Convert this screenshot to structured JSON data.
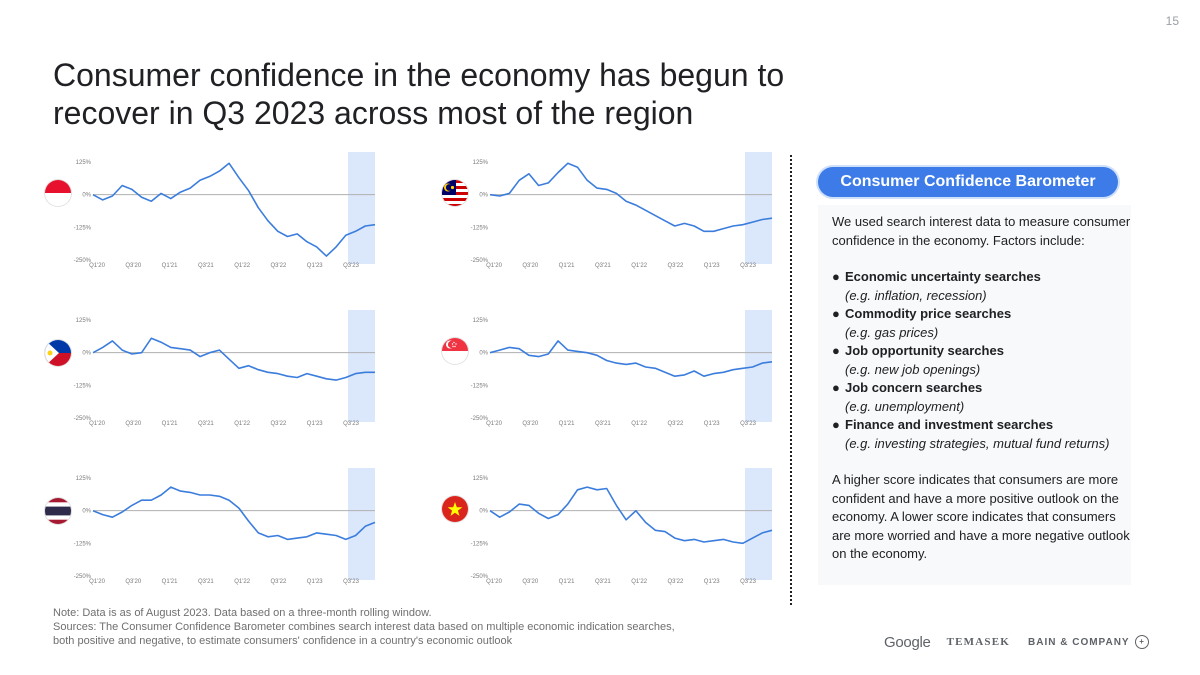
{
  "page": {
    "number": "15",
    "title": "Consumer confidence in the economy has begun to recover in Q3 2023 across most of the region"
  },
  "sidebar": {
    "pill_label": "Consumer Confidence Barometer",
    "intro": "We used search interest data to measure consumer confidence in the economy. Factors include:",
    "factors": [
      {
        "name": "Economic uncertainty searches",
        "example": "(e.g. inflation, recession)"
      },
      {
        "name": "Commodity price searches",
        "example": "(e.g. gas prices)"
      },
      {
        "name": "Job opportunity searches",
        "example": "(e.g. new job openings)"
      },
      {
        "name": "Job concern searches",
        "example": "(e.g. unemployment)"
      },
      {
        "name": "Finance and investment searches",
        "example": "(e.g. investing strategies, mutual fund returns)"
      }
    ],
    "conclusion": "A higher score indicates that consumers are more confident and have a more positive outlook on the economy. A lower score indicates that consumers are more worried and have a more negative outlook on the economy."
  },
  "footnote": {
    "note": "Note: Data is as of August 2023. Data based on a three-month rolling window.",
    "sources": "Sources: The Consumer Confidence Barometer combines search interest data based on multiple economic indication searches, both positive and negative, to estimate consumers' confidence in a country's economic outlook"
  },
  "logos": {
    "google": "Google",
    "temasek": "TEMASEK",
    "bain": "BAIN & COMPANY"
  },
  "colors": {
    "line": "#3b7ddd",
    "highlight": "#dbe7fb",
    "zero_line": "#b0b0b0",
    "pill": "#3c7be8"
  },
  "chart_data": [
    {
      "type": "line",
      "country": "Indonesia",
      "flag": "indonesia-flag",
      "title": "",
      "xlabel": "",
      "ylabel": "",
      "x_ticks": [
        "Q1'20",
        "Q3'20",
        "Q1'21",
        "Q3'21",
        "Q1'22",
        "Q3'22",
        "Q1'23",
        "Q3'23"
      ],
      "y_ticks": [
        "125%",
        "0%",
        "-125%",
        "-250%"
      ],
      "ylim": [
        -250,
        125
      ],
      "highlight": "Q3'23",
      "series": [
        {
          "values": [
            0,
            -20,
            -5,
            35,
            20,
            -10,
            -25,
            5,
            -15,
            10,
            25,
            55,
            70,
            90,
            120,
            65,
            15,
            -50,
            -100,
            -140,
            -160,
            -150,
            -180,
            -200,
            -235,
            -200,
            -155,
            -140,
            -120,
            -115
          ]
        }
      ]
    },
    {
      "type": "line",
      "country": "Malaysia",
      "flag": "malaysia-flag",
      "title": "",
      "xlabel": "",
      "ylabel": "",
      "x_ticks": [
        "Q1'20",
        "Q3'20",
        "Q1'21",
        "Q3'21",
        "Q1'22",
        "Q3'22",
        "Q1'23",
        "Q3'23"
      ],
      "y_ticks": [
        "125%",
        "0%",
        "-125%",
        "-250%"
      ],
      "ylim": [
        -250,
        125
      ],
      "highlight": "Q3'23",
      "series": [
        {
          "values": [
            0,
            -5,
            5,
            55,
            80,
            35,
            45,
            85,
            120,
            105,
            55,
            25,
            20,
            5,
            -25,
            -40,
            -60,
            -80,
            -100,
            -120,
            -110,
            -120,
            -140,
            -140,
            -130,
            -120,
            -115,
            -105,
            -95,
            -90
          ]
        }
      ]
    },
    {
      "type": "line",
      "country": "Philippines",
      "flag": "philippines-flag",
      "title": "",
      "xlabel": "",
      "ylabel": "",
      "x_ticks": [
        "Q1'20",
        "Q3'20",
        "Q1'21",
        "Q3'21",
        "Q1'22",
        "Q3'22",
        "Q1'23",
        "Q3'23"
      ],
      "y_ticks": [
        "125%",
        "0%",
        "-125%",
        "-250%"
      ],
      "ylim": [
        -250,
        125
      ],
      "highlight": "Q3'23",
      "series": [
        {
          "values": [
            0,
            20,
            45,
            10,
            -5,
            0,
            55,
            40,
            20,
            15,
            10,
            -15,
            0,
            10,
            -25,
            -60,
            -50,
            -65,
            -75,
            -80,
            -90,
            -95,
            -80,
            -90,
            -100,
            -105,
            -95,
            -80,
            -75,
            -75
          ]
        }
      ]
    },
    {
      "type": "line",
      "country": "Singapore",
      "flag": "singapore-flag",
      "title": "",
      "xlabel": "",
      "ylabel": "",
      "x_ticks": [
        "Q1'20",
        "Q3'20",
        "Q1'21",
        "Q3'21",
        "Q1'22",
        "Q3'22",
        "Q1'23",
        "Q3'23"
      ],
      "y_ticks": [
        "125%",
        "0%",
        "-125%",
        "-250%"
      ],
      "ylim": [
        -250,
        125
      ],
      "highlight": "Q3'23",
      "series": [
        {
          "values": [
            0,
            10,
            20,
            15,
            -10,
            -15,
            -5,
            45,
            10,
            5,
            0,
            -10,
            -30,
            -40,
            -45,
            -40,
            -55,
            -60,
            -75,
            -90,
            -85,
            -70,
            -90,
            -80,
            -75,
            -65,
            -60,
            -55,
            -40,
            -35
          ]
        }
      ]
    },
    {
      "type": "line",
      "country": "Thailand",
      "flag": "thailand-flag",
      "title": "",
      "xlabel": "",
      "ylabel": "",
      "x_ticks": [
        "Q1'20",
        "Q3'20",
        "Q1'21",
        "Q3'21",
        "Q1'22",
        "Q3'22",
        "Q1'23",
        "Q3'23"
      ],
      "y_ticks": [
        "125%",
        "0%",
        "-125%",
        "-250%"
      ],
      "ylim": [
        -250,
        125
      ],
      "highlight": "Q3'23",
      "series": [
        {
          "values": [
            0,
            -15,
            -25,
            -5,
            20,
            40,
            40,
            60,
            90,
            75,
            70,
            60,
            60,
            55,
            40,
            10,
            -40,
            -85,
            -100,
            -95,
            -110,
            -105,
            -100,
            -85,
            -90,
            -95,
            -110,
            -95,
            -60,
            -45
          ]
        }
      ]
    },
    {
      "type": "line",
      "country": "Vietnam",
      "flag": "vietnam-flag",
      "title": "",
      "xlabel": "",
      "ylabel": "",
      "x_ticks": [
        "Q1'20",
        "Q3'20",
        "Q1'21",
        "Q3'21",
        "Q1'22",
        "Q3'22",
        "Q1'23",
        "Q3'23"
      ],
      "y_ticks": [
        "125%",
        "0%",
        "-125%",
        "-250%"
      ],
      "ylim": [
        -250,
        125
      ],
      "highlight": "Q3'23",
      "series": [
        {
          "values": [
            0,
            -25,
            -5,
            25,
            20,
            -10,
            -30,
            -15,
            25,
            80,
            90,
            80,
            85,
            20,
            -35,
            0,
            -45,
            -75,
            -80,
            -105,
            -115,
            -110,
            -120,
            -115,
            -110,
            -120,
            -125,
            -105,
            -85,
            -75
          ]
        }
      ]
    }
  ]
}
